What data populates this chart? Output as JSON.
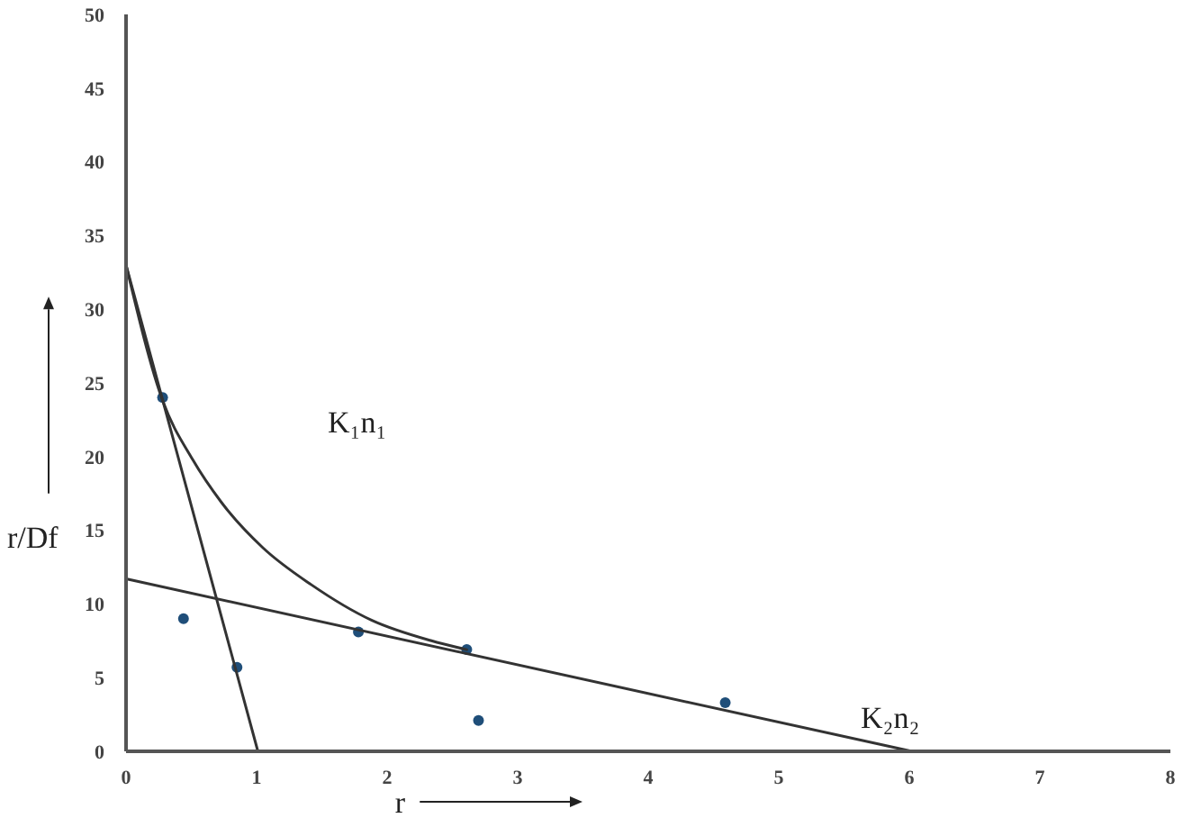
{
  "chart_data": {
    "type": "scatter",
    "xlabel": "r",
    "ylabel": "r/Df",
    "xlim": [
      0,
      8
    ],
    "ylim": [
      0,
      50
    ],
    "xticks": [
      0,
      1,
      2,
      3,
      4,
      5,
      6,
      7,
      8
    ],
    "yticks": [
      0,
      5,
      10,
      15,
      20,
      25,
      30,
      35,
      40,
      45,
      50
    ],
    "series": [
      {
        "color": "#1f4e79",
        "x": [
          0.28,
          0.44,
          0.85,
          1.78,
          2.61,
          2.7,
          4.59
        ],
        "values": [
          24,
          9,
          5.7,
          8.1,
          6.9,
          2.1,
          3.3
        ]
      },
      {
        "type": "line",
        "color": "#333333",
        "x": [
          0,
          1.01
        ],
        "values": [
          33,
          0
        ]
      },
      {
        "type": "line",
        "color": "#333333",
        "x": [
          0,
          6.02
        ],
        "values": [
          11.7,
          0
        ]
      },
      {
        "type": "line",
        "color": "#333333",
        "x": [
          0,
          0.28,
          0.51,
          0.73,
          1.05,
          1.42,
          1.88,
          2.34,
          2.61
        ],
        "values": [
          33,
          23.8,
          19.8,
          16.9,
          13.8,
          11.3,
          8.9,
          7.5,
          6.9
        ]
      }
    ],
    "annotations": [
      "K₁n₁",
      "K₂n₂"
    ]
  }
}
